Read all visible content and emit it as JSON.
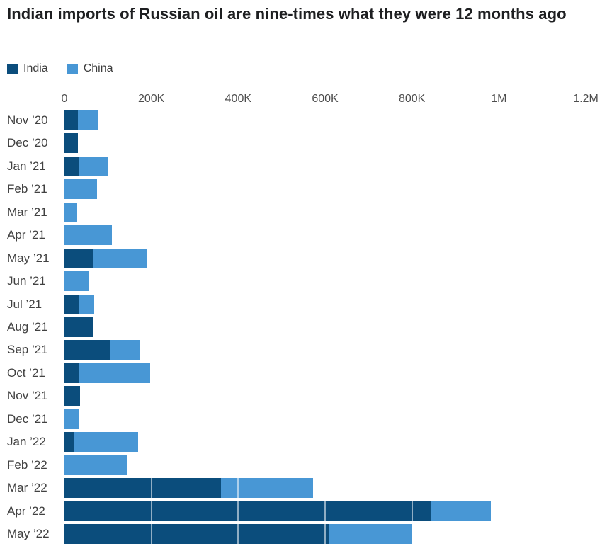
{
  "chart": {
    "title": "Indian imports of Russian oil are nine-times what they were 12 months ago",
    "legend": [
      {
        "label": "India",
        "color": "#0b4d7c"
      },
      {
        "label": "China",
        "color": "#4897d5"
      }
    ]
  },
  "chart_data": {
    "type": "bar",
    "orientation": "horizontal",
    "stacked": true,
    "title": "Indian imports of Russian oil are nine-times what they were 12 months ago",
    "categories": [
      "Nov ’20",
      "Dec ’20",
      "Jan ’21",
      "Feb ’21",
      "Mar ’21",
      "Apr ’21",
      "May ’21",
      "Jun ’21",
      "Jul ’21",
      "Aug ’21",
      "Sep ’21",
      "Oct ’21",
      "Nov ’21",
      "Dec ’21",
      "Jan ’22",
      "Feb ’22",
      "Mar ’22",
      "Apr ’22",
      "May ’22"
    ],
    "series": [
      {
        "name": "India",
        "color": "#0b4d7c",
        "values": [
          31000,
          31000,
          33000,
          0,
          0,
          0,
          67000,
          0,
          34000,
          67000,
          105000,
          32000,
          36000,
          0,
          22000,
          0,
          360000,
          843000,
          610000
        ]
      },
      {
        "name": "China",
        "color": "#4897d5",
        "values": [
          48000,
          0,
          67000,
          75000,
          30000,
          110000,
          122000,
          57000,
          35000,
          0,
          70000,
          166000,
          0,
          32000,
          148000,
          144000,
          212000,
          138000,
          189000
        ]
      }
    ],
    "x_axis": {
      "tick_labels": [
        "0",
        "200K",
        "400K",
        "600K",
        "800K",
        "1M",
        "1.2M"
      ],
      "tick_values": [
        0,
        200000,
        400000,
        600000,
        800000,
        1000000,
        1200000
      ],
      "max": 1200000
    },
    "ylabel": "",
    "xlabel": "",
    "grid": "vertical white gridlines drawn over bars at each 200K",
    "legend_position": "top-left"
  }
}
